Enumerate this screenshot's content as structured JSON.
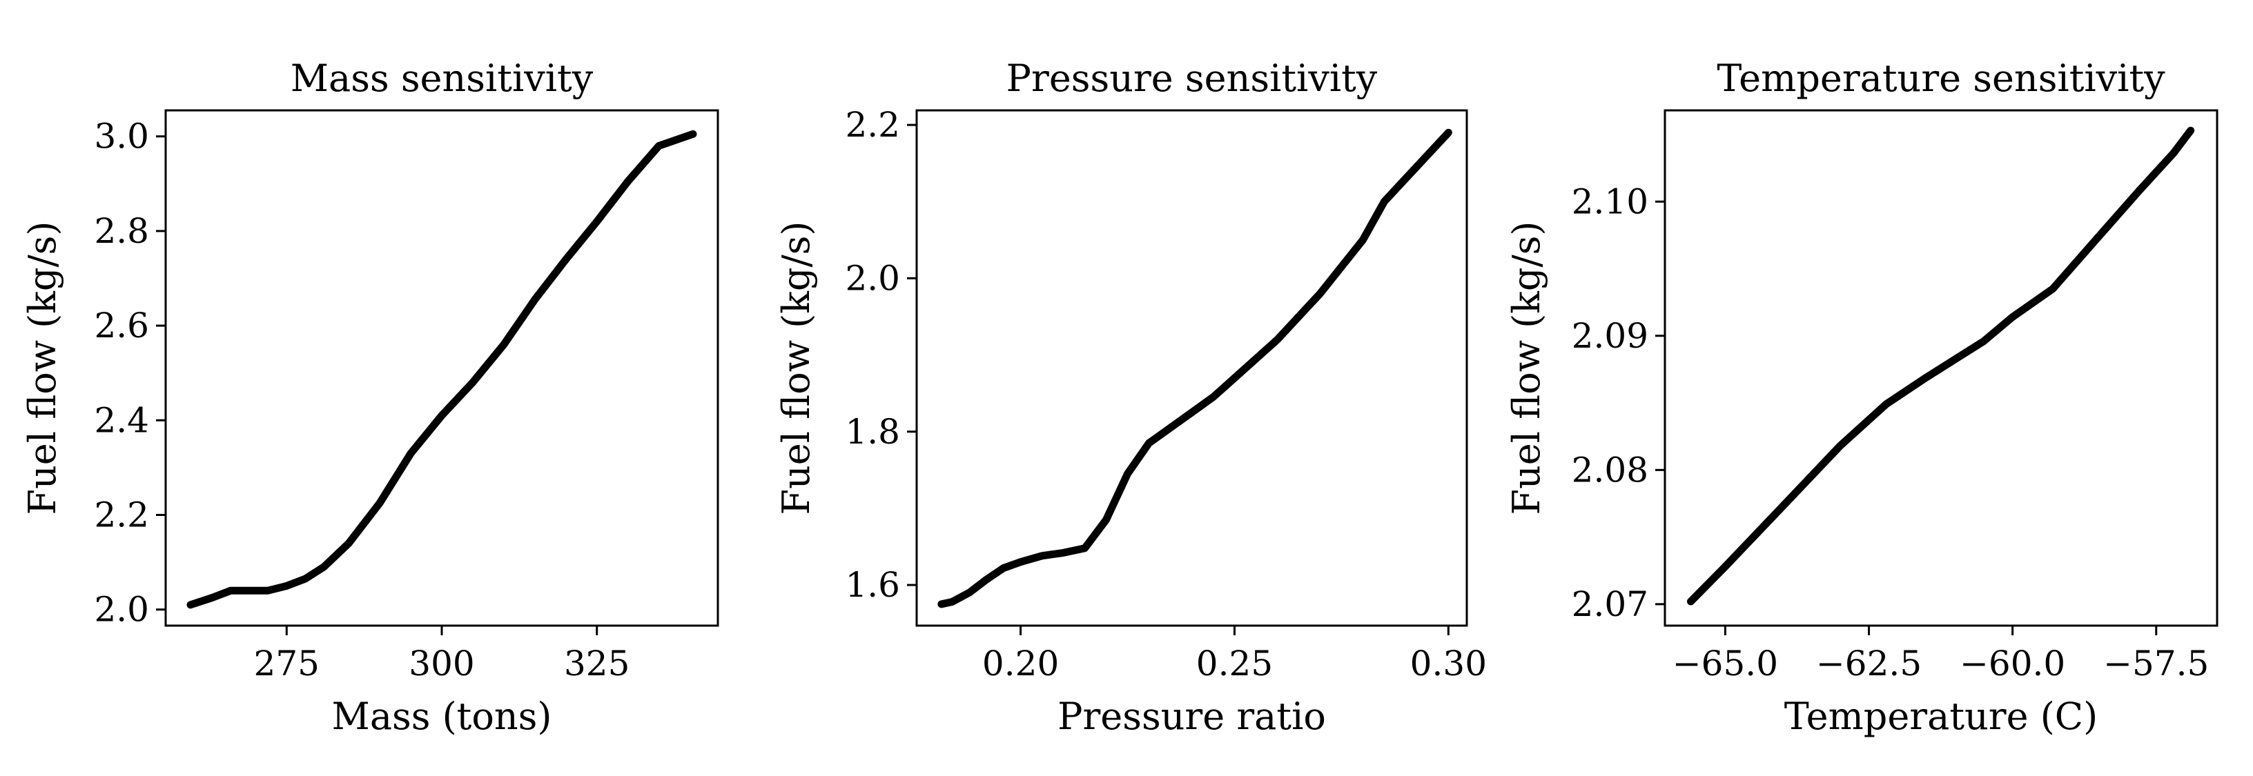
{
  "chart_data": [
    {
      "type": "line",
      "title": "Mass sensitivity",
      "xlabel": "Mass (tons)",
      "ylabel": "Fuel flow (kg/s)",
      "xlim": [
        255.5,
        344.5
      ],
      "ylim": [
        1.966,
        3.055
      ],
      "xticks": [
        {
          "value": 275,
          "label": "275"
        },
        {
          "value": 300,
          "label": "300"
        },
        {
          "value": 325,
          "label": "325"
        }
      ],
      "yticks": [
        {
          "value": 2.0,
          "label": "2.0"
        },
        {
          "value": 2.2,
          "label": "2.2"
        },
        {
          "value": 2.4,
          "label": "2.4"
        },
        {
          "value": 2.6,
          "label": "2.6"
        },
        {
          "value": 2.8,
          "label": "2.8"
        },
        {
          "value": 3.0,
          "label": "3.0"
        }
      ],
      "series": [
        {
          "name": "fuel-flow",
          "color": "#000000",
          "x": [
            259.5,
            263,
            266,
            269,
            272,
            275,
            278,
            281,
            285,
            290,
            295,
            300,
            305,
            310,
            315,
            320,
            325,
            330,
            335,
            340.5
          ],
          "y": [
            2.01,
            2.025,
            2.04,
            2.04,
            2.04,
            2.05,
            2.065,
            2.09,
            2.14,
            2.225,
            2.33,
            2.41,
            2.48,
            2.56,
            2.655,
            2.74,
            2.82,
            2.905,
            2.98,
            3.005
          ]
        }
      ]
    },
    {
      "type": "line",
      "title": "Pressure sensitivity",
      "xlabel": "Pressure ratio",
      "ylabel": "Fuel flow (kg/s)",
      "xlim": [
        0.1757,
        0.3043
      ],
      "ylim": [
        1.547,
        2.219
      ],
      "xticks": [
        {
          "value": 0.2,
          "label": "0.20"
        },
        {
          "value": 0.25,
          "label": "0.25"
        },
        {
          "value": 0.3,
          "label": "0.30"
        }
      ],
      "yticks": [
        {
          "value": 1.6,
          "label": "1.6"
        },
        {
          "value": 1.8,
          "label": "1.8"
        },
        {
          "value": 2.0,
          "label": "2.0"
        },
        {
          "value": 2.2,
          "label": "2.2"
        }
      ],
      "series": [
        {
          "name": "fuel-flow",
          "color": "#000000",
          "x": [
            0.1815,
            0.184,
            0.188,
            0.192,
            0.196,
            0.2,
            0.205,
            0.21,
            0.215,
            0.22,
            0.225,
            0.23,
            0.235,
            0.24,
            0.245,
            0.25,
            0.26,
            0.27,
            0.28,
            0.285,
            0.29,
            0.3
          ],
          "y": [
            1.575,
            1.578,
            1.59,
            1.607,
            1.622,
            1.63,
            1.638,
            1.642,
            1.648,
            1.685,
            1.745,
            1.785,
            1.805,
            1.825,
            1.845,
            1.87,
            1.92,
            1.98,
            2.05,
            2.1,
            2.13,
            2.19
          ]
        }
      ]
    },
    {
      "type": "line",
      "title": "Temperature sensitivity",
      "xlabel": "Temperature (C)",
      "ylabel": "Fuel flow (kg/s)",
      "xlim": [
        -66.05,
        -56.44
      ],
      "ylim": [
        2.0684,
        2.1068
      ],
      "xticks": [
        {
          "value": -65.0,
          "label": "−65.0"
        },
        {
          "value": -62.5,
          "label": "−62.5"
        },
        {
          "value": -60.0,
          "label": "−60.0"
        },
        {
          "value": -57.5,
          "label": "−57.5"
        }
      ],
      "yticks": [
        {
          "value": 2.07,
          "label": "2.07"
        },
        {
          "value": 2.08,
          "label": "2.08"
        },
        {
          "value": 2.09,
          "label": "2.09"
        },
        {
          "value": 2.1,
          "label": "2.1"
        }
      ],
      "ytick_labels": [
        "2.07",
        "2.08",
        "2.09",
        "2.10"
      ],
      "series": [
        {
          "name": "fuel-flow",
          "color": "#000000",
          "x": [
            -65.6,
            -65.0,
            -64.0,
            -63.0,
            -62.2,
            -61.5,
            -60.5,
            -60.0,
            -59.3,
            -58.5,
            -57.8,
            -57.2,
            -56.9
          ],
          "y": [
            2.0702,
            2.0728,
            2.0773,
            2.0818,
            2.0849,
            2.0869,
            2.0896,
            2.0914,
            2.0935,
            2.0974,
            2.1008,
            2.1036,
            2.1053
          ]
        }
      ]
    }
  ]
}
